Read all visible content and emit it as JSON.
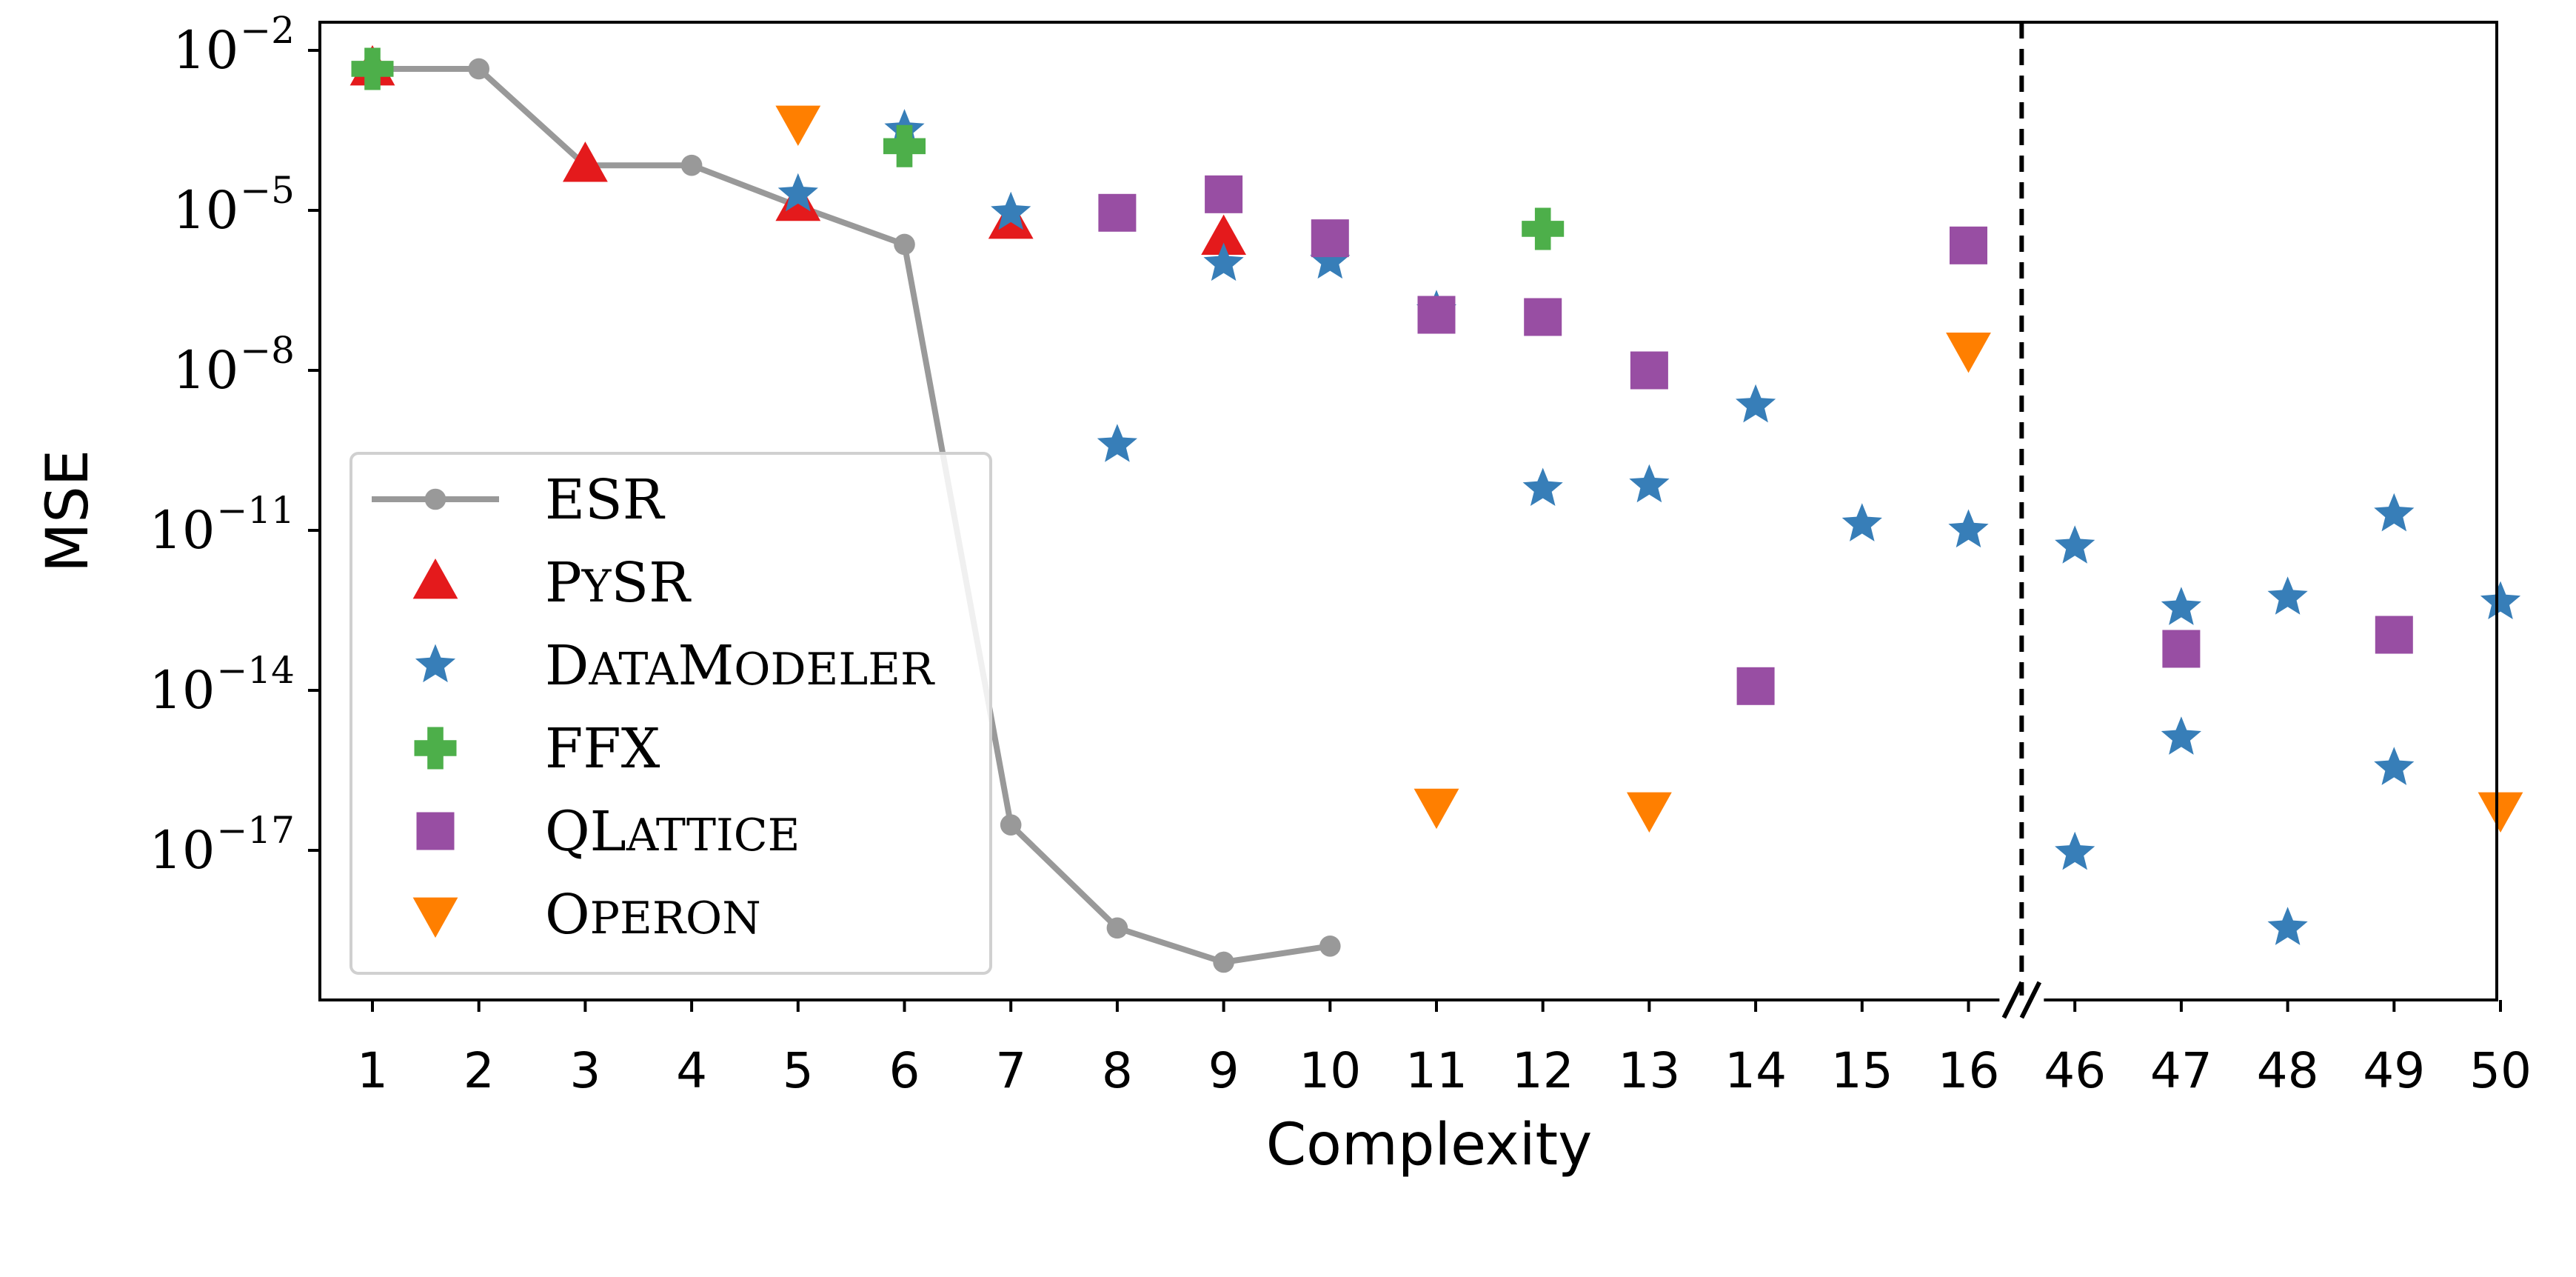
{
  "chart_data": {
    "type": "scatter",
    "xlabel": "Complexity",
    "ylabel": "MSE",
    "x_tick_labels": [
      "1",
      "2",
      "3",
      "4",
      "5",
      "6",
      "7",
      "8",
      "9",
      "10",
      "11",
      "12",
      "13",
      "14",
      "15",
      "16",
      "46",
      "47",
      "48",
      "49",
      "50"
    ],
    "y_scale": "log",
    "y_ticks": [
      {
        "value": 0.01,
        "base": "10",
        "exp": "−2"
      },
      {
        "value": 1e-05,
        "base": "10",
        "exp": "−5"
      },
      {
        "value": 1e-08,
        "base": "10",
        "exp": "−8"
      },
      {
        "value": 1e-11,
        "base": "10",
        "exp": "−11"
      },
      {
        "value": 1e-14,
        "base": "10",
        "exp": "−14"
      },
      {
        "value": 1e-17,
        "base": "10",
        "exp": "−17"
      }
    ],
    "ylim": [
      1e-20,
      0.01
    ],
    "x_axis_break": {
      "after": 16,
      "before": 46,
      "marker": "//",
      "dashed_line": true
    },
    "grid": false,
    "legend_position": "lower-left",
    "series": [
      {
        "name": "ESR",
        "name_display": [
          [
            "ESR",
            false
          ]
        ],
        "marker": "circle",
        "line": true,
        "color": "#999999",
        "points": [
          [
            1,
            0.0045
          ],
          [
            2,
            0.0045
          ],
          [
            3,
            7e-05
          ],
          [
            4,
            7e-05
          ],
          [
            5,
            1.2e-05
          ],
          [
            6,
            2.3e-06
          ],
          [
            7,
            3e-17
          ],
          [
            8,
            3.5e-19
          ],
          [
            9,
            8e-20
          ],
          [
            10,
            1.6e-19
          ]
        ]
      },
      {
        "name": "PySR",
        "name_display": [
          [
            "P",
            false
          ],
          [
            "Y",
            true
          ],
          [
            "SR",
            false
          ]
        ],
        "marker": "triangle-up",
        "line": false,
        "color": "#e41a1c",
        "points": [
          [
            1,
            0.0045
          ],
          [
            3,
            7e-05
          ],
          [
            5,
            1.3e-05
          ],
          [
            7,
            6e-06
          ],
          [
            9,
            3e-06
          ]
        ]
      },
      {
        "name": "DataModeler",
        "name_display": [
          [
            "D",
            false
          ],
          [
            "ATA",
            true
          ],
          [
            "M",
            false
          ],
          [
            "ODELER",
            true
          ]
        ],
        "marker": "star",
        "line": false,
        "color": "#377eb8",
        "points": [
          [
            5,
            2e-05
          ],
          [
            6,
            0.00032
          ],
          [
            7,
            9e-06
          ],
          [
            8,
            4e-10
          ],
          [
            9,
            1e-06
          ],
          [
            10,
            1.1e-06
          ],
          [
            11,
            1.3e-07
          ],
          [
            12,
            6e-11
          ],
          [
            13,
            7e-11
          ],
          [
            14,
            2.2e-09
          ],
          [
            15,
            1.3e-11
          ],
          [
            16,
            1e-11
          ],
          [
            46,
            5e-12
          ],
          [
            47,
            3.5e-13
          ],
          [
            48,
            5.5e-13
          ],
          [
            49,
            2e-11
          ],
          [
            50,
            4.5e-13
          ],
          [
            46,
            9e-18
          ],
          [
            47,
            1.3e-15
          ],
          [
            48,
            3.5e-19
          ],
          [
            49,
            3.5e-16
          ]
        ]
      },
      {
        "name": "FFX",
        "name_display": [
          [
            "FFX",
            false
          ]
        ],
        "marker": "plus",
        "line": false,
        "color": "#4daf4a",
        "points": [
          [
            1,
            0.0045
          ],
          [
            6,
            0.00016
          ],
          [
            12,
            4.5e-06
          ]
        ]
      },
      {
        "name": "QLattice",
        "name_display": [
          [
            "QL",
            false
          ],
          [
            "ATTICE",
            true
          ]
        ],
        "marker": "square",
        "line": false,
        "color": "#984ea3",
        "points": [
          [
            8,
            9e-06
          ],
          [
            9,
            2e-05
          ],
          [
            10,
            3e-06
          ],
          [
            11,
            1.1e-07
          ],
          [
            12,
            1e-07
          ],
          [
            13,
            1e-08
          ],
          [
            14,
            1.2e-14
          ],
          [
            16,
            2.2e-06
          ],
          [
            47,
            6e-14
          ],
          [
            49,
            1.1e-13
          ]
        ]
      },
      {
        "name": "Operon",
        "name_display": [
          [
            "O",
            false
          ],
          [
            "PERON",
            true
          ]
        ],
        "marker": "triangle-down",
        "line": false,
        "color": "#ff7f00",
        "points": [
          [
            5,
            0.00045
          ],
          [
            11,
            7e-17
          ],
          [
            13,
            6e-17
          ],
          [
            16,
            2.5e-08
          ],
          [
            50,
            6e-17
          ]
        ]
      }
    ]
  }
}
